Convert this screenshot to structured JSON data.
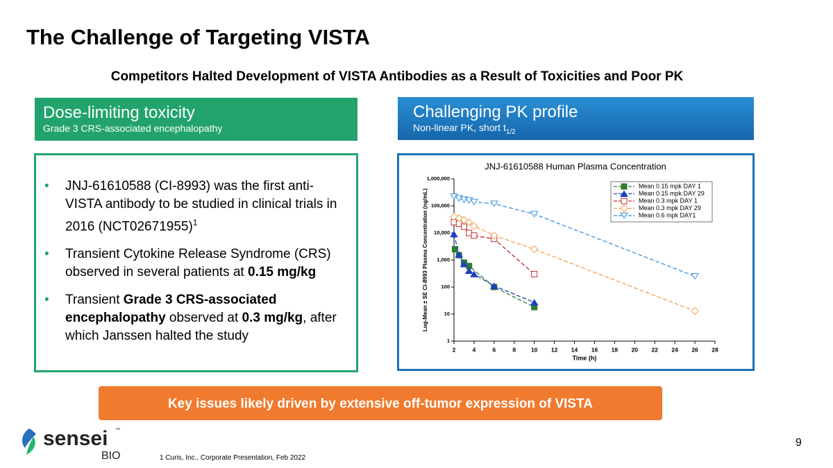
{
  "slide": {
    "title": "The Challenge of Targeting VISTA",
    "subtitle": "Competitors Halted Development of VISTA Antibodies as a Result of Toxicities and Poor PK",
    "left_header": {
      "title": "Dose-limiting toxicity",
      "subtitle": "Grade 3 CRS-associated encephalopathy"
    },
    "right_header": {
      "title": "Challenging PK profile",
      "subtitle": "Non-linear PK, short t",
      "subtitle_sub": "1/2"
    },
    "bullets": [
      [
        {
          "text": "JNJ-61610588 (CI-8993) was the first anti-VISTA antibody to be studied in clinical trials in 2016 (NCT02671955)"
        },
        {
          "text": "1",
          "style": "sup"
        }
      ],
      [
        {
          "text": "Transient Cytokine Release Syndrome (CRS) observed in several patients at "
        },
        {
          "text": "0.15 mg/kg",
          "style": "bold"
        }
      ],
      [
        {
          "text": "Transient "
        },
        {
          "text": "Grade 3 CRS-associated encephalopathy",
          "style": "bold"
        },
        {
          "text": " observed at "
        },
        {
          "text": "0.3 mg/kg",
          "style": "bold"
        },
        {
          "text": ", after which Janssen halted the study"
        }
      ]
    ],
    "banner": "Key issues likely driven by extensive off-tumor expression of VISTA",
    "footnote": "1 Curis, Inc., Corporate Presentation, Feb 2022",
    "page_number": "9",
    "logo": {
      "name": "sensei",
      "tm": "™",
      "sub": "BIO"
    }
  },
  "chart_data": {
    "type": "line",
    "title": "JNJ-61610588 Human Plasma Concentration",
    "x_label": "Time (h)",
    "y_label": "Log-Mean ± SE CI-8993 Plasma Concentration (ng/mL)",
    "y_scale": "log",
    "xlim": [
      2,
      28
    ],
    "xticks": [
      2,
      4,
      6,
      8,
      10,
      12,
      14,
      16,
      18,
      20,
      22,
      24,
      26,
      28
    ],
    "ylim": [
      1,
      1000000
    ],
    "yticks": [
      1,
      10,
      100,
      {
        "value": 1000,
        "label": "1,000"
      },
      {
        "value": 10000,
        "label": "10,000"
      },
      {
        "value": 100000,
        "label": "100,000"
      },
      {
        "value": 1000000,
        "label": "1,000,000"
      }
    ],
    "legend": "top-right",
    "series": [
      {
        "name": "Mean 0.15 mpk DAY 1",
        "color": "#2e7d32",
        "marker": "square-filled",
        "x": [
          2.1,
          2.5,
          3,
          3.5,
          6,
          10
        ],
        "values": [
          2500,
          1500,
          800,
          600,
          100,
          18
        ]
      },
      {
        "name": "Mean 0.15 mpk DAY 29",
        "color": "#1f3fbf",
        "marker": "triangle-filled",
        "x": [
          2,
          2.5,
          3,
          3.5,
          4,
          6,
          10
        ],
        "values": [
          9000,
          1600,
          700,
          400,
          300,
          110,
          27
        ]
      },
      {
        "name": "Mean 0.3 mpk DAY 1",
        "color": "#c62828",
        "marker": "square-open",
        "x": [
          2,
          2.5,
          3,
          3.5,
          4,
          6,
          10
        ],
        "values": [
          25000,
          22000,
          17000,
          10000,
          8000,
          6000,
          300
        ]
      },
      {
        "name": "Mean 0.3 mpk DAY 29",
        "color": "#f0a050",
        "marker": "diamond-open",
        "x": [
          2,
          2.5,
          3,
          3.5,
          4,
          6,
          10,
          26
        ],
        "values": [
          40000,
          35000,
          30000,
          25000,
          18000,
          8000,
          2500,
          13
        ]
      },
      {
        "name": "Mean 0.6 mpk DAY1",
        "color": "#3a8fd8",
        "marker": "triangle-down-open",
        "x": [
          2,
          2.5,
          3,
          3.5,
          4,
          6,
          10,
          26
        ],
        "values": [
          220000,
          190000,
          170000,
          160000,
          140000,
          120000,
          50000,
          250
        ]
      }
    ]
  }
}
